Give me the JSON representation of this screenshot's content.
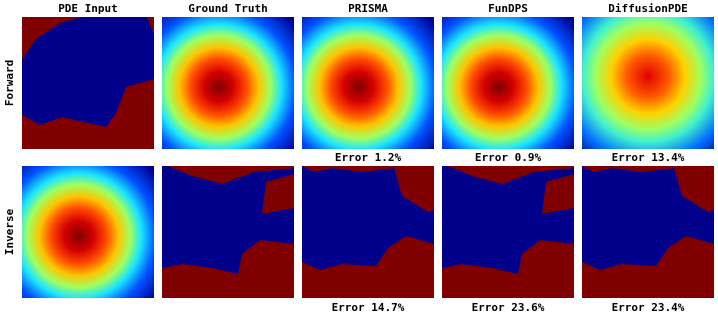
{
  "columns": [
    "PDE Input",
    "Ground Truth",
    "PRISMA",
    "FunDPS",
    "DiffusionPDE"
  ],
  "rows": [
    "Forward",
    "Inverse"
  ],
  "forward_errors": [
    "Error 1.2%",
    "Error 0.9%",
    "Error 13.4%"
  ],
  "inverse_errors": [
    "Error 14.7%",
    "Error 23.6%",
    "Error 23.4%"
  ]
}
